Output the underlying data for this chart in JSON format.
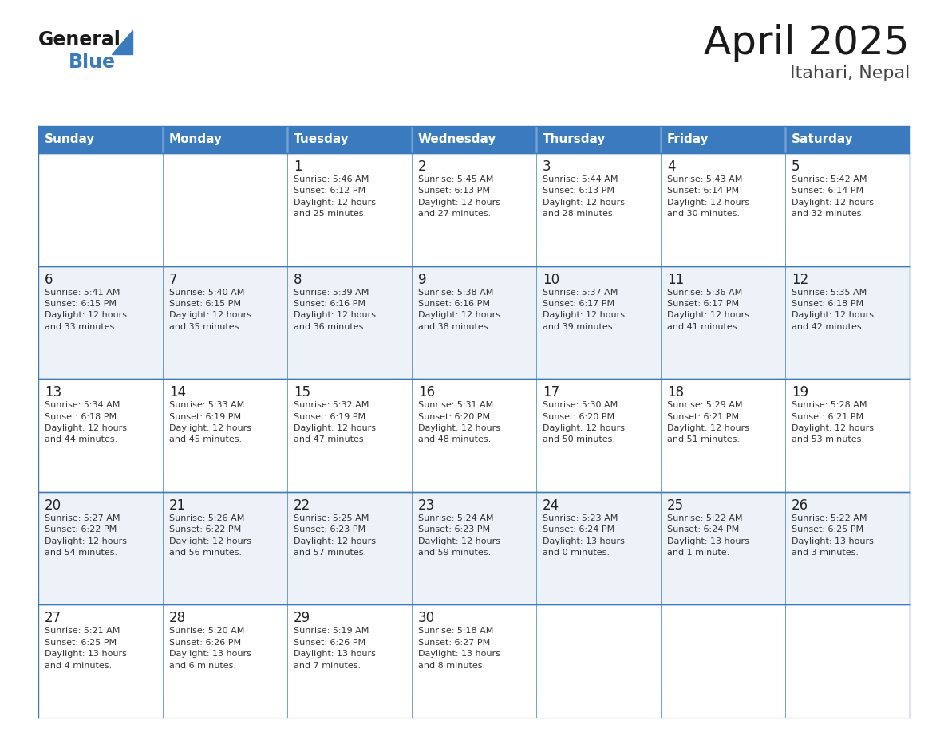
{
  "title": "April 2025",
  "subtitle": "Itahari, Nepal",
  "header_color": "#3a7abf",
  "header_text_color": "#ffffff",
  "cell_bg_color": "#ffffff",
  "alt_row_color": "#f0f4f8",
  "border_color": "#3a7abf",
  "text_color": "#333333",
  "days_of_week": [
    "Sunday",
    "Monday",
    "Tuesday",
    "Wednesday",
    "Thursday",
    "Friday",
    "Saturday"
  ],
  "weeks": [
    [
      {
        "day": null,
        "info": null
      },
      {
        "day": null,
        "info": null
      },
      {
        "day": 1,
        "info": "Sunrise: 5:46 AM\nSunset: 6:12 PM\nDaylight: 12 hours\nand 25 minutes."
      },
      {
        "day": 2,
        "info": "Sunrise: 5:45 AM\nSunset: 6:13 PM\nDaylight: 12 hours\nand 27 minutes."
      },
      {
        "day": 3,
        "info": "Sunrise: 5:44 AM\nSunset: 6:13 PM\nDaylight: 12 hours\nand 28 minutes."
      },
      {
        "day": 4,
        "info": "Sunrise: 5:43 AM\nSunset: 6:14 PM\nDaylight: 12 hours\nand 30 minutes."
      },
      {
        "day": 5,
        "info": "Sunrise: 5:42 AM\nSunset: 6:14 PM\nDaylight: 12 hours\nand 32 minutes."
      }
    ],
    [
      {
        "day": 6,
        "info": "Sunrise: 5:41 AM\nSunset: 6:15 PM\nDaylight: 12 hours\nand 33 minutes."
      },
      {
        "day": 7,
        "info": "Sunrise: 5:40 AM\nSunset: 6:15 PM\nDaylight: 12 hours\nand 35 minutes."
      },
      {
        "day": 8,
        "info": "Sunrise: 5:39 AM\nSunset: 6:16 PM\nDaylight: 12 hours\nand 36 minutes."
      },
      {
        "day": 9,
        "info": "Sunrise: 5:38 AM\nSunset: 6:16 PM\nDaylight: 12 hours\nand 38 minutes."
      },
      {
        "day": 10,
        "info": "Sunrise: 5:37 AM\nSunset: 6:17 PM\nDaylight: 12 hours\nand 39 minutes."
      },
      {
        "day": 11,
        "info": "Sunrise: 5:36 AM\nSunset: 6:17 PM\nDaylight: 12 hours\nand 41 minutes."
      },
      {
        "day": 12,
        "info": "Sunrise: 5:35 AM\nSunset: 6:18 PM\nDaylight: 12 hours\nand 42 minutes."
      }
    ],
    [
      {
        "day": 13,
        "info": "Sunrise: 5:34 AM\nSunset: 6:18 PM\nDaylight: 12 hours\nand 44 minutes."
      },
      {
        "day": 14,
        "info": "Sunrise: 5:33 AM\nSunset: 6:19 PM\nDaylight: 12 hours\nand 45 minutes."
      },
      {
        "day": 15,
        "info": "Sunrise: 5:32 AM\nSunset: 6:19 PM\nDaylight: 12 hours\nand 47 minutes."
      },
      {
        "day": 16,
        "info": "Sunrise: 5:31 AM\nSunset: 6:20 PM\nDaylight: 12 hours\nand 48 minutes."
      },
      {
        "day": 17,
        "info": "Sunrise: 5:30 AM\nSunset: 6:20 PM\nDaylight: 12 hours\nand 50 minutes."
      },
      {
        "day": 18,
        "info": "Sunrise: 5:29 AM\nSunset: 6:21 PM\nDaylight: 12 hours\nand 51 minutes."
      },
      {
        "day": 19,
        "info": "Sunrise: 5:28 AM\nSunset: 6:21 PM\nDaylight: 12 hours\nand 53 minutes."
      }
    ],
    [
      {
        "day": 20,
        "info": "Sunrise: 5:27 AM\nSunset: 6:22 PM\nDaylight: 12 hours\nand 54 minutes."
      },
      {
        "day": 21,
        "info": "Sunrise: 5:26 AM\nSunset: 6:22 PM\nDaylight: 12 hours\nand 56 minutes."
      },
      {
        "day": 22,
        "info": "Sunrise: 5:25 AM\nSunset: 6:23 PM\nDaylight: 12 hours\nand 57 minutes."
      },
      {
        "day": 23,
        "info": "Sunrise: 5:24 AM\nSunset: 6:23 PM\nDaylight: 12 hours\nand 59 minutes."
      },
      {
        "day": 24,
        "info": "Sunrise: 5:23 AM\nSunset: 6:24 PM\nDaylight: 13 hours\nand 0 minutes."
      },
      {
        "day": 25,
        "info": "Sunrise: 5:22 AM\nSunset: 6:24 PM\nDaylight: 13 hours\nand 1 minute."
      },
      {
        "day": 26,
        "info": "Sunrise: 5:22 AM\nSunset: 6:25 PM\nDaylight: 13 hours\nand 3 minutes."
      }
    ],
    [
      {
        "day": 27,
        "info": "Sunrise: 5:21 AM\nSunset: 6:25 PM\nDaylight: 13 hours\nand 4 minutes."
      },
      {
        "day": 28,
        "info": "Sunrise: 5:20 AM\nSunset: 6:26 PM\nDaylight: 13 hours\nand 6 minutes."
      },
      {
        "day": 29,
        "info": "Sunrise: 5:19 AM\nSunset: 6:26 PM\nDaylight: 13 hours\nand 7 minutes."
      },
      {
        "day": 30,
        "info": "Sunrise: 5:18 AM\nSunset: 6:27 PM\nDaylight: 13 hours\nand 8 minutes."
      },
      {
        "day": null,
        "info": null
      },
      {
        "day": null,
        "info": null
      },
      {
        "day": null,
        "info": null
      }
    ]
  ],
  "logo_general_color": "#1a1a1a",
  "logo_blue_color": "#3a7abf",
  "logo_triangle_color": "#3a7abf",
  "title_fontsize": 36,
  "subtitle_fontsize": 16,
  "dow_fontsize": 11,
  "day_num_fontsize": 12,
  "cell_text_fontsize": 8
}
